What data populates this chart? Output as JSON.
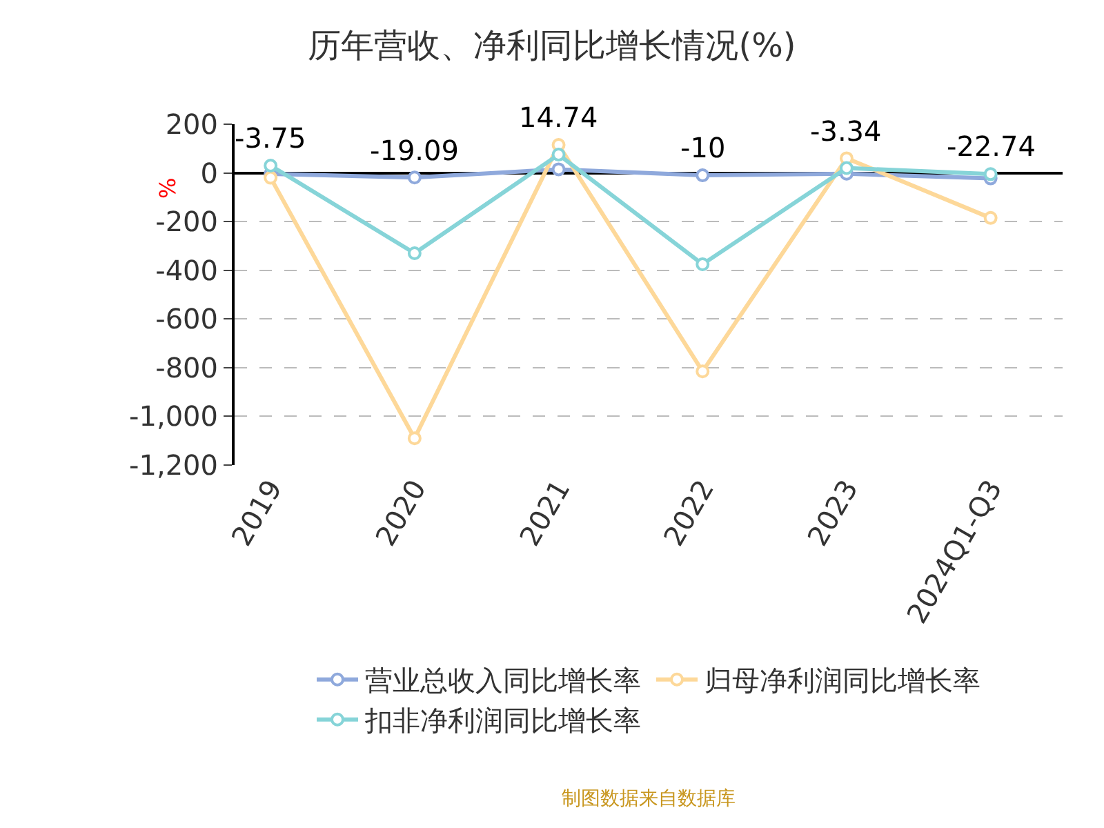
{
  "chart_data": {
    "type": "line",
    "title": "历年营收、净利同比增长情况(%)",
    "ylabel": "%",
    "categories": [
      "2019",
      "2020",
      "2021",
      "2022",
      "2023",
      "2024Q1-Q3"
    ],
    "series": [
      {
        "name": "营业总收入同比增长率",
        "color": "#8fa9dc",
        "values": [
          -3.75,
          -19.09,
          14.74,
          -10,
          -3.34,
          -22.74
        ],
        "value_labels": [
          "-3.75",
          "-19.09",
          "14.74",
          "-10",
          "-3.34",
          "-22.74"
        ]
      },
      {
        "name": "归母净利润同比增长率",
        "color": "#fdd899",
        "values": [
          -20,
          -1090,
          115,
          -815,
          60,
          -185
        ]
      },
      {
        "name": "扣非净利润同比增长率",
        "color": "#86d4d8",
        "values": [
          30,
          -330,
          75,
          -375,
          20,
          -5
        ]
      }
    ],
    "ylim": [
      -1200,
      200
    ],
    "yticks": [
      200,
      0,
      -200,
      -400,
      -600,
      -800,
      {
        "value": -1000,
        "label": "-1,000"
      },
      {
        "value": -1200,
        "label": "-1,200"
      }
    ],
    "grid": "y",
    "legend": "bottom",
    "marker": "circle",
    "line_style": "solid",
    "annotations": [
      "制图数据来自数据库"
    ]
  }
}
